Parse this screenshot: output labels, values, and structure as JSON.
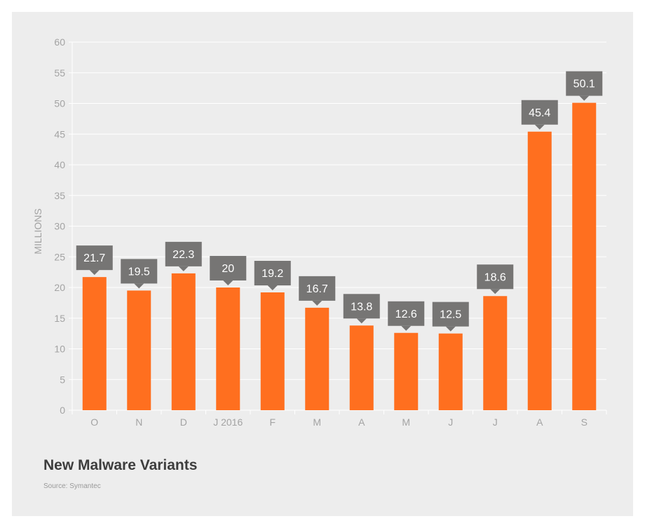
{
  "chart_data": {
    "type": "bar",
    "title": "New Malware Variants",
    "source": "Source: Symantec",
    "ylabel": "MILLIONS",
    "xlabel": "",
    "categories": [
      "O",
      "N",
      "D",
      "J 2016",
      "F",
      "M",
      "A",
      "M",
      "J",
      "J",
      "A",
      "S"
    ],
    "values": [
      21.7,
      19.5,
      22.3,
      20,
      19.2,
      16.7,
      13.8,
      12.6,
      12.5,
      18.6,
      45.4,
      50.1
    ],
    "value_labels": [
      "21.7",
      "19.5",
      "22.3",
      "20",
      "19.2",
      "16.7",
      "13.8",
      "12.6",
      "12.5",
      "18.6",
      "45.4",
      "50.1"
    ],
    "ylim": [
      0,
      60
    ],
    "yticks": [
      0,
      5,
      10,
      15,
      20,
      25,
      30,
      35,
      40,
      45,
      50,
      55,
      60
    ],
    "grid": true,
    "colors": {
      "bar": "#ff6f1f",
      "label_box": "#767574",
      "background": "#ededed",
      "grid": "#ffffff",
      "tick_text": "#a3a3a3"
    }
  }
}
